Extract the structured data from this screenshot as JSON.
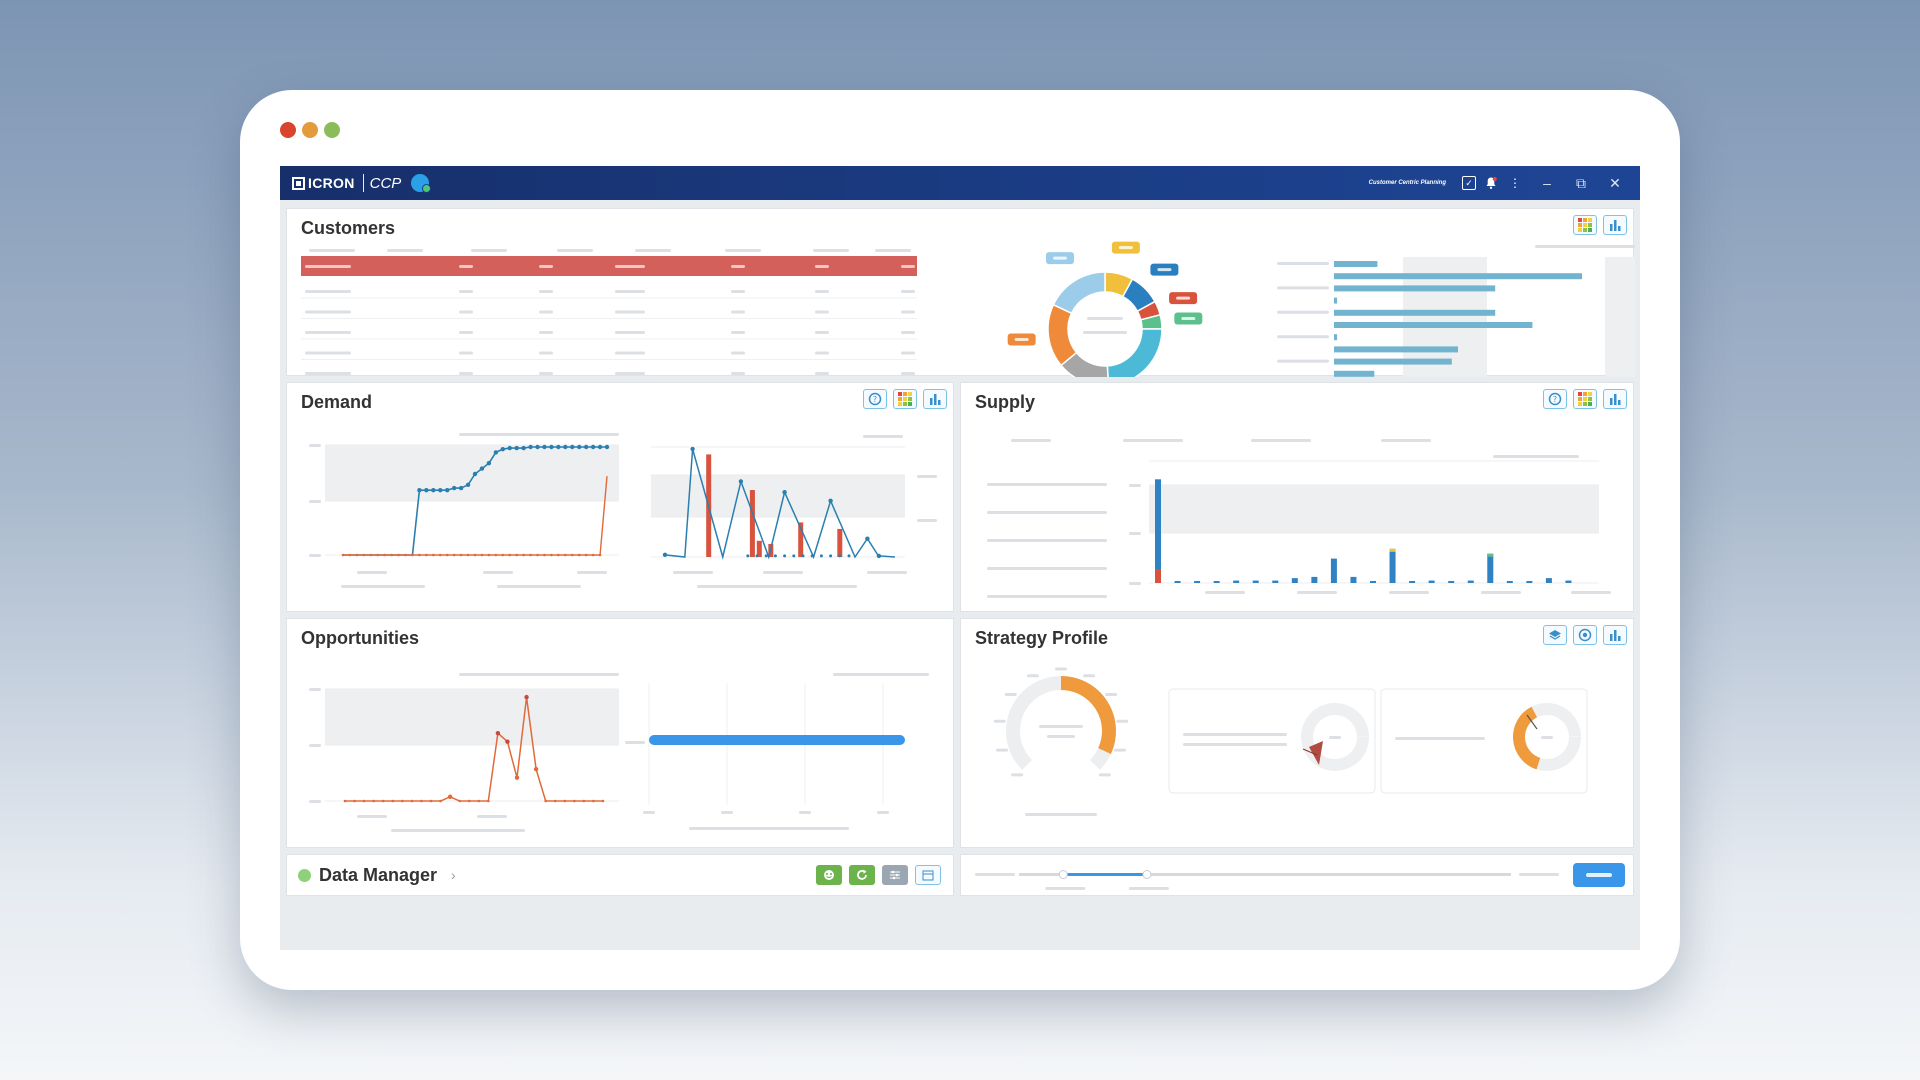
{
  "window_controls": {
    "close_color": "#d9442e",
    "minimize_color": "#e39b3c",
    "maximize_color": "#8bbc5a"
  },
  "app": {
    "logo": "ICRON",
    "name": "CCP",
    "caption": "Customer Centric Planning",
    "titlebar_icons": [
      "task-check-icon",
      "notification-bell-icon",
      "more-vertical-icon"
    ],
    "window_buttons": [
      "minimize-icon",
      "restore-icon",
      "close-icon"
    ]
  },
  "panels": {
    "customers": {
      "title": "Customers",
      "icons": [
        "grid-view-icon",
        "chart-view-icon"
      ],
      "donut_segments": [
        {
          "color": "#f0c03c",
          "value": 8
        },
        {
          "color": "#2a7fc1",
          "value": 9
        },
        {
          "color": "#d9523e",
          "value": 4
        },
        {
          "color": "#5cc08c",
          "value": 4
        },
        {
          "color": "#4cbad7",
          "value": 24
        },
        {
          "color": "#a6a6a6",
          "value": 15
        },
        {
          "color": "#ee8a3a",
          "value": 18
        },
        {
          "color": "#9bcdea",
          "value": 18
        }
      ],
      "bar_values": [
        0.14,
        0.8,
        0.52,
        0.01,
        0.52,
        0.64,
        0.01,
        0.4,
        0.38,
        0.13
      ]
    },
    "demand": {
      "title": "Demand",
      "icons": [
        "help-icon",
        "grid-view-icon",
        "chart-view-icon"
      ],
      "line_blue": [
        0,
        0,
        0,
        0,
        0,
        0,
        0,
        0,
        0,
        0,
        0,
        0.6,
        0.6,
        0.6,
        0.6,
        0.6,
        0.62,
        0.62,
        0.65,
        0.75,
        0.8,
        0.85,
        0.95,
        0.98,
        0.99,
        0.99,
        0.99,
        1,
        1,
        1,
        1,
        1,
        1,
        1,
        1,
        1,
        1,
        1,
        1
      ],
      "line_orange_last": 0.96,
      "spikes_blue": [
        [
          0,
          0.02
        ],
        [
          0.12,
          1
        ],
        [
          0.33,
          0.7
        ],
        [
          0.52,
          0.6
        ],
        [
          0.72,
          0.52
        ],
        [
          0.88,
          0.17
        ],
        [
          0.93,
          0.01
        ]
      ],
      "bars_red": [
        [
          0.19,
          0.95
        ],
        [
          0.38,
          0.62
        ],
        [
          0.41,
          0.15
        ],
        [
          0.46,
          0.12
        ],
        [
          0.59,
          0.32
        ],
        [
          0.76,
          0.26
        ]
      ]
    },
    "supply": {
      "title": "Supply",
      "icons": [
        "help-icon",
        "grid-view-icon",
        "chart-view-icon"
      ],
      "bars": [
        0.85,
        0.01,
        0.01,
        0.01,
        0.02,
        0.02,
        0.02,
        0.04,
        0.05,
        0.2,
        0.05,
        0.01,
        0.28,
        0.01,
        0.02,
        0.01,
        0.02,
        0.24,
        0.01,
        0.01,
        0.04,
        0.02
      ]
    },
    "opportunities": {
      "title": "Opportunities",
      "line_orange": [
        0,
        0,
        0,
        0,
        0,
        0,
        0,
        0,
        0,
        0,
        0,
        0.04,
        0,
        0,
        0,
        0,
        0.64,
        0.56,
        0.22,
        0.98,
        0.3,
        0,
        0,
        0,
        0,
        0,
        0,
        0
      ],
      "progress_fraction": 1.0
    },
    "strategy": {
      "title": "Strategy Profile",
      "icons": [
        "layers-icon",
        "target-icon",
        "chart-view-icon"
      ],
      "gauge_fraction": 0.25,
      "card1_fraction": 0.07,
      "card2_fraction": 0.35
    },
    "data_manager": {
      "title": "Data Manager",
      "status_color": "#8fd17a",
      "actions": [
        "import-icon",
        "refresh-icon",
        "settings-sliders-icon",
        "calendar-icon"
      ]
    },
    "timeline": {
      "range_fraction": [
        0.09,
        0.26
      ]
    }
  },
  "colors": {
    "accent_blue": "#3a8ec9",
    "orange": "#e06a3a",
    "header_red": "#d3605a",
    "bar_teal": "#72b3cf"
  }
}
